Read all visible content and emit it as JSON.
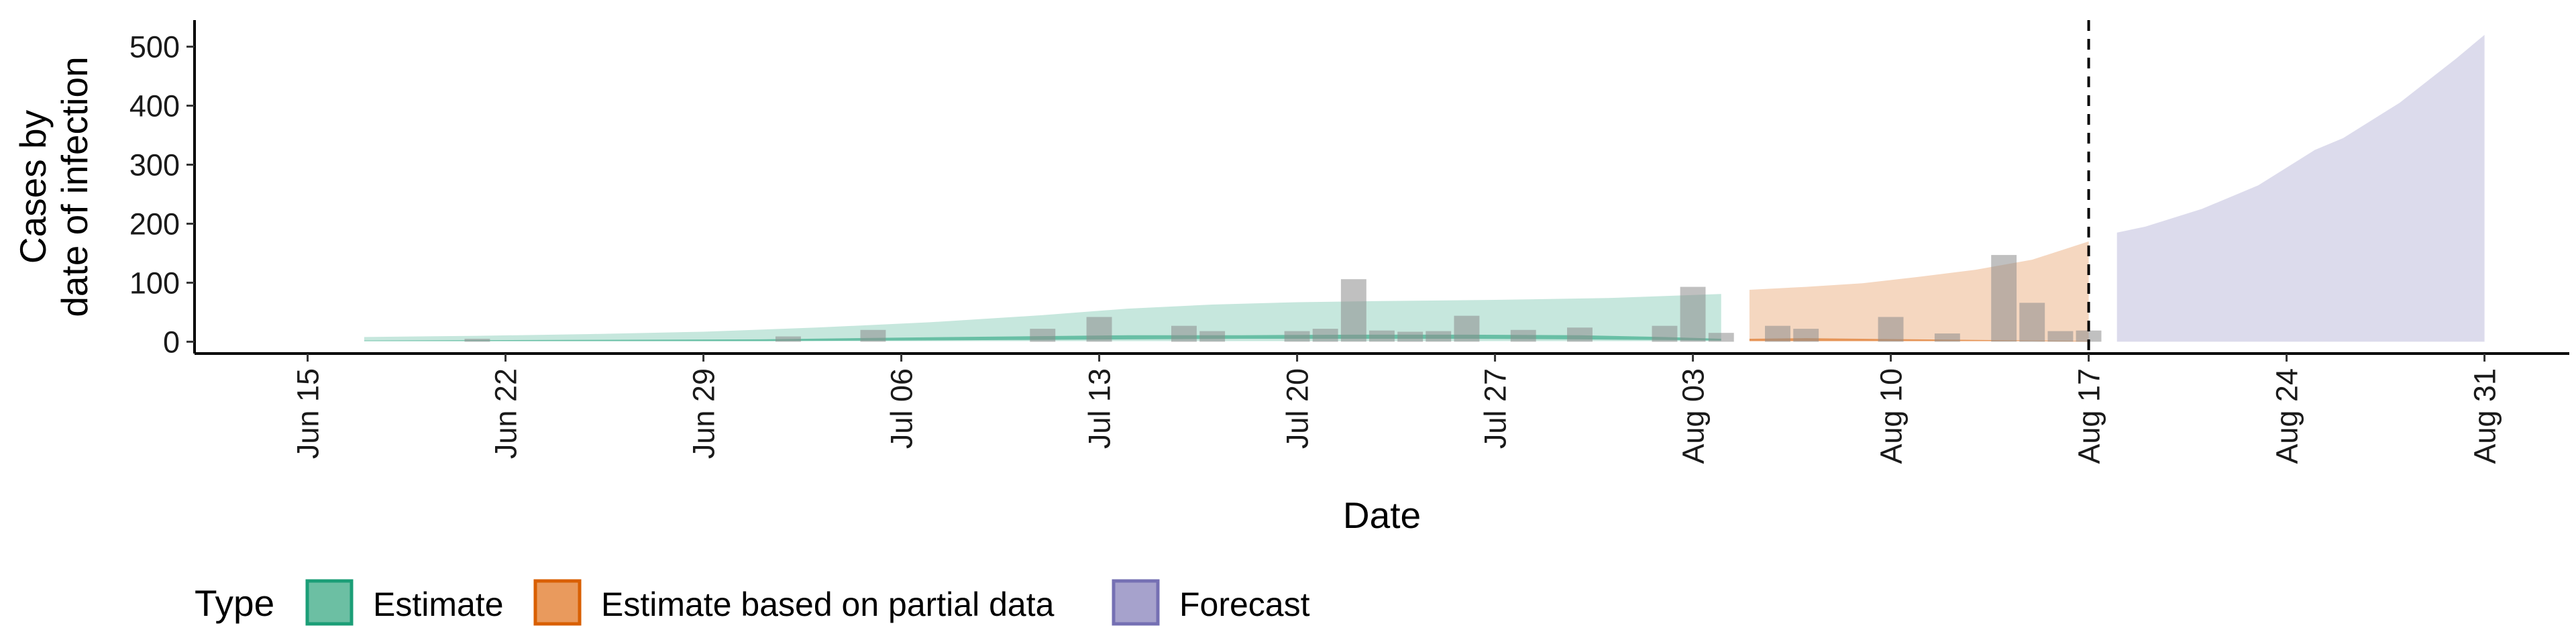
{
  "chart_data": {
    "type": "area",
    "title": "",
    "xlabel": "Date",
    "ylabel_lines": [
      "Cases by",
      "date of infection"
    ],
    "y_ticks": [
      0,
      100,
      200,
      300,
      400,
      500
    ],
    "ylim": [
      -20,
      545
    ],
    "xlim": [
      "2020-06-11",
      "2020-09-03"
    ],
    "x_ticks": [
      {
        "date": "2020-06-15",
        "label": "Jun 15"
      },
      {
        "date": "2020-06-22",
        "label": "Jun 22"
      },
      {
        "date": "2020-06-29",
        "label": "Jun 29"
      },
      {
        "date": "2020-07-06",
        "label": "Jul 06"
      },
      {
        "date": "2020-07-13",
        "label": "Jul 13"
      },
      {
        "date": "2020-07-20",
        "label": "Jul 20"
      },
      {
        "date": "2020-07-27",
        "label": "Jul 27"
      },
      {
        "date": "2020-08-03",
        "label": "Aug 03"
      },
      {
        "date": "2020-08-10",
        "label": "Aug 10"
      },
      {
        "date": "2020-08-17",
        "label": "Aug 17"
      },
      {
        "date": "2020-08-24",
        "label": "Aug 24"
      },
      {
        "date": "2020-08-31",
        "label": "Aug 31"
      }
    ],
    "vline_date": "2020-08-17",
    "legend": {
      "title": "Type",
      "position": "bottom-left",
      "items": [
        {
          "label": "Estimate",
          "fill": "#6cbfa3",
          "border": "#1b9e77"
        },
        {
          "label": "Estimate based on partial data",
          "fill": "#e99a5d",
          "border": "#d95f02"
        },
        {
          "label": "Forecast",
          "fill": "#a6a2cc",
          "border": "#7570b3"
        }
      ]
    },
    "series": [
      {
        "name": "Estimate",
        "color": "#1b9e77",
        "outer_band": {
          "x": [
            "2020-06-17",
            "2020-06-21",
            "2020-06-25",
            "2020-06-29",
            "2020-07-03",
            "2020-07-07",
            "2020-07-11",
            "2020-07-14",
            "2020-07-17",
            "2020-07-20",
            "2020-07-23",
            "2020-07-27",
            "2020-07-31",
            "2020-08-04"
          ],
          "upper": [
            8,
            10,
            13,
            17,
            24,
            33,
            45,
            56,
            63,
            67,
            69,
            71,
            74,
            81
          ],
          "lower": [
            1,
            1,
            1,
            1,
            1,
            1,
            1,
            1,
            1,
            1,
            1,
            1,
            1,
            1
          ]
        },
        "inner_band": {
          "x": [
            "2020-06-17",
            "2020-06-24",
            "2020-07-01",
            "2020-07-06",
            "2020-07-10",
            "2020-07-14",
            "2020-07-18",
            "2020-07-22",
            "2020-07-26",
            "2020-07-30",
            "2020-08-02",
            "2020-08-04"
          ],
          "upper": [
            2,
            3,
            4,
            7,
            9,
            11,
            11,
            12,
            12,
            11,
            8,
            5
          ],
          "lower": [
            1,
            1,
            1,
            2,
            3,
            4,
            5,
            5,
            5,
            4,
            3,
            2
          ]
        }
      },
      {
        "name": "Estimate based on partial data",
        "color": "#d95f02",
        "outer_band": {
          "x": [
            "2020-08-05",
            "2020-08-07",
            "2020-08-09",
            "2020-08-11",
            "2020-08-13",
            "2020-08-15",
            "2020-08-17"
          ],
          "upper": [
            88,
            93,
            99,
            110,
            122,
            139,
            170
          ],
          "lower": [
            1,
            1,
            1,
            1,
            1,
            1,
            1
          ]
        },
        "inner_band": {
          "x": [
            "2020-08-05",
            "2020-08-07",
            "2020-08-09",
            "2020-08-11",
            "2020-08-13",
            "2020-08-15",
            "2020-08-17"
          ],
          "upper": [
            5,
            6,
            5,
            4,
            3,
            2,
            1
          ],
          "lower": [
            1,
            1,
            1,
            1,
            1,
            1,
            0
          ]
        }
      },
      {
        "name": "Forecast",
        "color": "#7570b3",
        "outer_band": {
          "x": [
            "2020-08-18",
            "2020-08-19",
            "2020-08-21",
            "2020-08-23",
            "2020-08-25",
            "2020-08-26",
            "2020-08-28",
            "2020-08-30",
            "2020-08-31"
          ],
          "upper": [
            185,
            195,
            225,
            265,
            325,
            345,
            405,
            480,
            520
          ],
          "lower": [
            0,
            0,
            0,
            0,
            0,
            0,
            0,
            0,
            0
          ]
        }
      }
    ],
    "observed_cases": {
      "dates": [
        "2020-06-21",
        "2020-07-02",
        "2020-07-05",
        "2020-07-11",
        "2020-07-13",
        "2020-07-16",
        "2020-07-17",
        "2020-07-20",
        "2020-07-21",
        "2020-07-22",
        "2020-07-23",
        "2020-07-24",
        "2020-07-25",
        "2020-07-26",
        "2020-07-28",
        "2020-07-30",
        "2020-08-02",
        "2020-08-03",
        "2020-08-04",
        "2020-08-06",
        "2020-08-07",
        "2020-08-10",
        "2020-08-12",
        "2020-08-14",
        "2020-08-15",
        "2020-08-16",
        "2020-08-17"
      ],
      "values": [
        5,
        9,
        20,
        22,
        42,
        27,
        18,
        18,
        22,
        106,
        19,
        17,
        18,
        44,
        20,
        24,
        27,
        93,
        15,
        27,
        22,
        42,
        14,
        147,
        66,
        18,
        19
      ]
    }
  }
}
